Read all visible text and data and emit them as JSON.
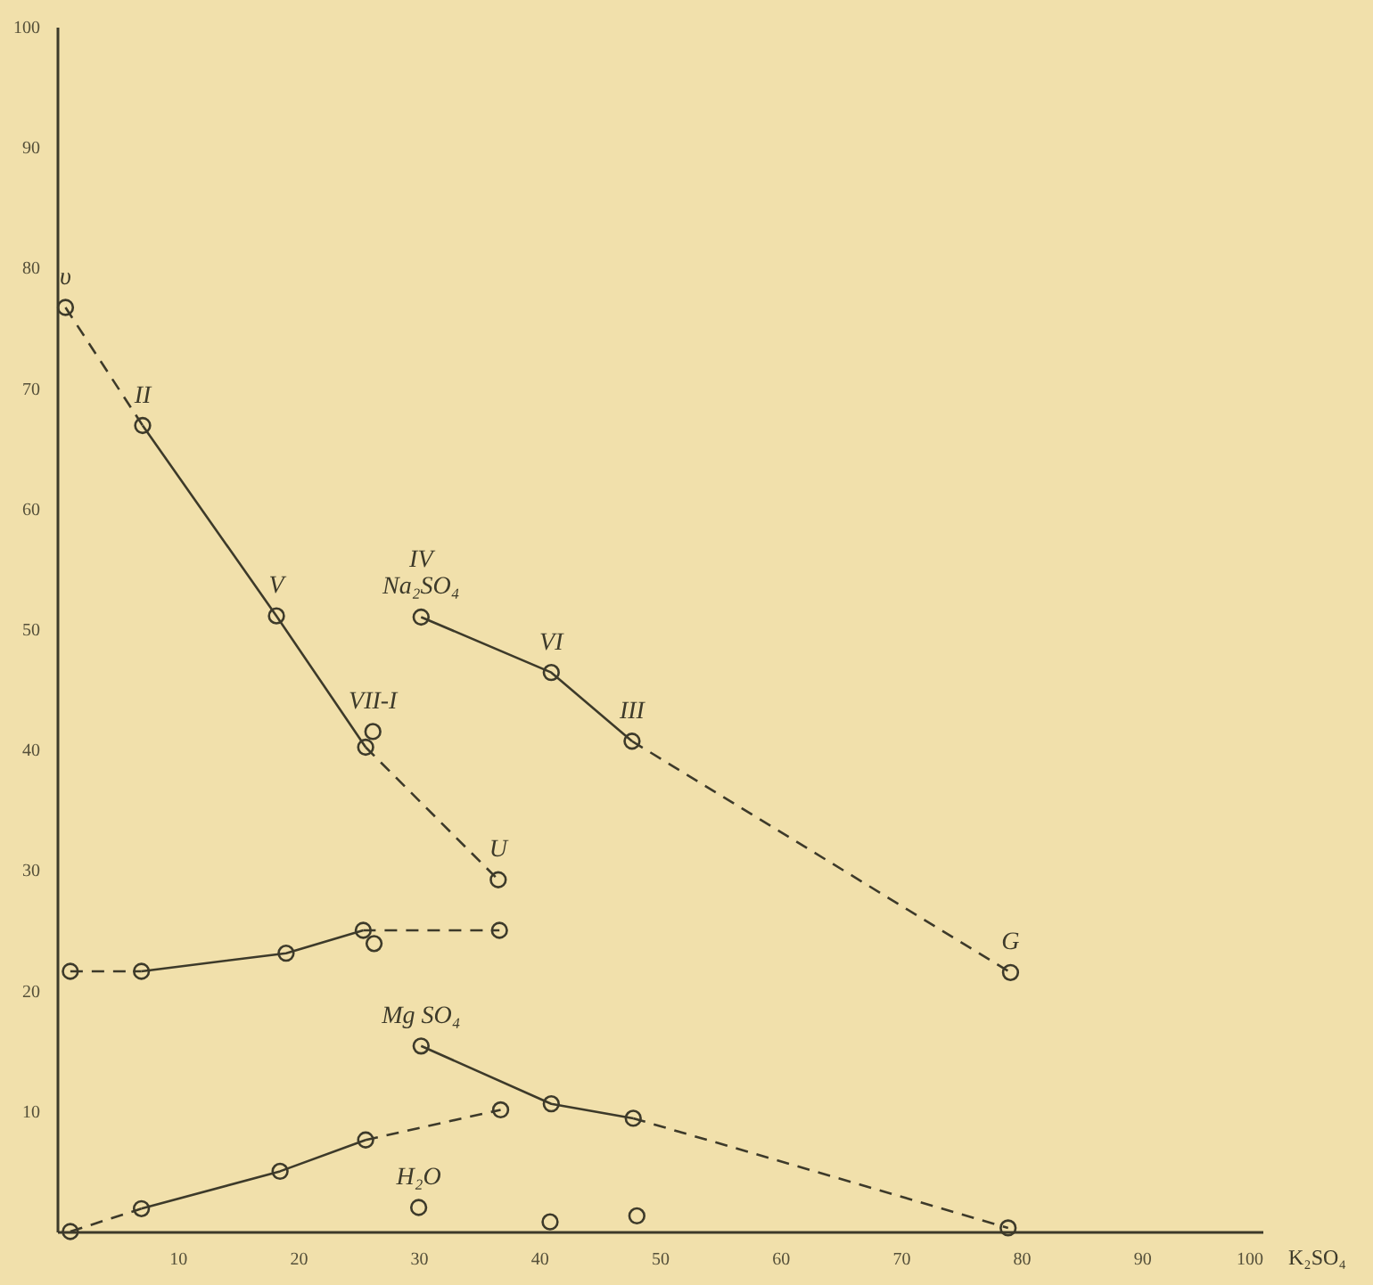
{
  "chart_data": {
    "type": "line",
    "xlabel": "K₂SO₄",
    "xlim": [
      0,
      100
    ],
    "ylim": [
      0,
      100
    ],
    "xticks": [
      10,
      20,
      30,
      40,
      50,
      60,
      70,
      80,
      90,
      100
    ],
    "yticks": [
      10,
      20,
      30,
      40,
      50,
      60,
      70,
      80,
      90,
      100
    ],
    "grid": false,
    "series": [
      {
        "type": "line",
        "line_style": "dashed",
        "marker": "none",
        "color": "#3d3a2a",
        "x": [
          0.7,
          7.1
        ],
        "values": [
          76.7,
          66.9
        ]
      },
      {
        "type": "line",
        "line_style": "solid",
        "marker": "none",
        "color": "#3d3a2a",
        "x": [
          7.1,
          18.2,
          25.6
        ],
        "values": [
          66.9,
          51.1,
          40.2
        ]
      },
      {
        "type": "line",
        "line_style": "dashed",
        "marker": "none",
        "color": "#3d3a2a",
        "x": [
          25.6,
          36.6
        ],
        "values": [
          40.2,
          29.2
        ]
      },
      {
        "type": "line",
        "line_style": "solid",
        "marker": "none",
        "color": "#3d3a2a",
        "x": [
          30.2,
          41.0,
          47.7
        ],
        "values": [
          51.0,
          46.4,
          40.7
        ]
      },
      {
        "type": "line",
        "line_style": "dashed",
        "marker": "none",
        "color": "#3d3a2a",
        "x": [
          47.7,
          79.1
        ],
        "values": [
          40.7,
          21.5
        ]
      },
      {
        "type": "line",
        "line_style": "dashed",
        "marker": "none",
        "color": "#3d3a2a",
        "x": [
          1.1,
          7.0
        ],
        "values": [
          21.6,
          21.6
        ]
      },
      {
        "type": "line",
        "line_style": "solid",
        "marker": "none",
        "color": "#3d3a2a",
        "x": [
          7.0,
          19.0,
          25.4
        ],
        "values": [
          21.6,
          23.1,
          25.0
        ]
      },
      {
        "type": "line",
        "line_style": "dashed",
        "marker": "none",
        "color": "#3d3a2a",
        "x": [
          25.4,
          36.7
        ],
        "values": [
          25.0,
          25.0
        ]
      },
      {
        "type": "line",
        "line_style": "dashed",
        "marker": "none",
        "color": "#3d3a2a",
        "x": [
          1.1,
          7.0
        ],
        "values": [
          0.0,
          1.9
        ]
      },
      {
        "type": "line",
        "line_style": "solid",
        "marker": "none",
        "color": "#3d3a2a",
        "x": [
          7.0,
          18.5,
          25.6
        ],
        "values": [
          1.9,
          5.0,
          7.6
        ]
      },
      {
        "type": "line",
        "line_style": "dashed",
        "marker": "none",
        "color": "#3d3a2a",
        "x": [
          25.6,
          36.8
        ],
        "values": [
          7.6,
          10.1
        ]
      },
      {
        "type": "line",
        "line_style": "solid",
        "marker": "none",
        "color": "#3d3a2a",
        "x": [
          30.2,
          41.0,
          47.8
        ],
        "values": [
          15.4,
          10.6,
          9.4
        ]
      },
      {
        "type": "line",
        "line_style": "dashed",
        "marker": "none",
        "color": "#3d3a2a",
        "x": [
          47.8,
          78.9
        ],
        "values": [
          9.4,
          0.3
        ]
      },
      {
        "type": "scatter",
        "marker": "circle",
        "color": "#3d3a2a",
        "x": [
          0.7,
          7.1,
          18.2,
          25.6,
          26.2,
          36.6,
          30.2,
          41.0,
          47.7,
          79.1,
          1.1,
          7.0,
          19.0,
          25.4,
          26.3,
          36.7,
          1.1,
          7.0,
          18.5,
          25.6,
          36.8,
          30.2,
          41.0,
          47.8,
          78.9,
          30.0,
          40.9,
          48.1
        ],
        "values": [
          76.7,
          66.9,
          51.1,
          40.2,
          41.5,
          29.2,
          51.0,
          46.4,
          40.7,
          21.5,
          21.6,
          21.6,
          23.1,
          25.0,
          23.9,
          25.0,
          0.0,
          1.9,
          5.0,
          7.6,
          10.1,
          15.4,
          10.6,
          9.4,
          0.3,
          2.0,
          0.8,
          1.3
        ]
      }
    ],
    "annotations": [
      {
        "text": "υ",
        "x": 0.7,
        "y": 76.7
      },
      {
        "text": "II",
        "x": 7.1,
        "y": 66.9
      },
      {
        "text": "V",
        "x": 18.2,
        "y": 51.1
      },
      {
        "text": "VII-I",
        "x": 26.2,
        "y": 41.5
      },
      {
        "text": "U",
        "x": 36.6,
        "y": 29.2
      },
      {
        "text": "Na₂SO₄",
        "x": 30.2,
        "y": 51.0
      },
      {
        "text": "IV",
        "x": 30.2,
        "y": 51.0
      },
      {
        "text": "VI",
        "x": 41.0,
        "y": 46.4
      },
      {
        "text": "III",
        "x": 47.7,
        "y": 40.7
      },
      {
        "text": "G",
        "x": 79.1,
        "y": 21.5
      },
      {
        "text": "Mg SO₄",
        "x": 30.2,
        "y": 15.4
      },
      {
        "text": "H₂O",
        "x": 30.0,
        "y": 2.0
      }
    ]
  }
}
